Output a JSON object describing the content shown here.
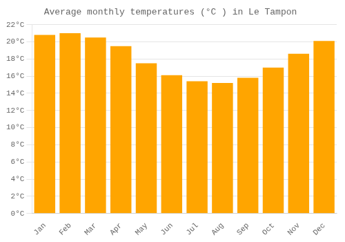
{
  "chart_data": {
    "type": "bar",
    "title": "Average monthly temperatures (°C ) in Le Tampon",
    "categories": [
      "Jan",
      "Feb",
      "Mar",
      "Apr",
      "May",
      "Jun",
      "Jul",
      "Aug",
      "Sep",
      "Oct",
      "Nov",
      "Dec"
    ],
    "values": [
      20.8,
      21.0,
      20.5,
      19.5,
      17.5,
      16.1,
      15.4,
      15.2,
      15.8,
      17.0,
      18.6,
      20.1
    ],
    "color": "#FFA500",
    "ylim": [
      0,
      22
    ],
    "yticks": [
      {
        "value": 0,
        "label": "0°C"
      },
      {
        "value": 2,
        "label": "2°C"
      },
      {
        "value": 4,
        "label": "4°C"
      },
      {
        "value": 6,
        "label": "6°C"
      },
      {
        "value": 8,
        "label": "8°C"
      },
      {
        "value": 10,
        "label": "10°C"
      },
      {
        "value": 12,
        "label": "12°C"
      },
      {
        "value": 14,
        "label": "14°C"
      },
      {
        "value": 16,
        "label": "16°C"
      },
      {
        "value": 18,
        "label": "18°C"
      },
      {
        "value": 20,
        "label": "20°C"
      },
      {
        "value": 22,
        "label": "22°C"
      }
    ],
    "grid": true
  }
}
